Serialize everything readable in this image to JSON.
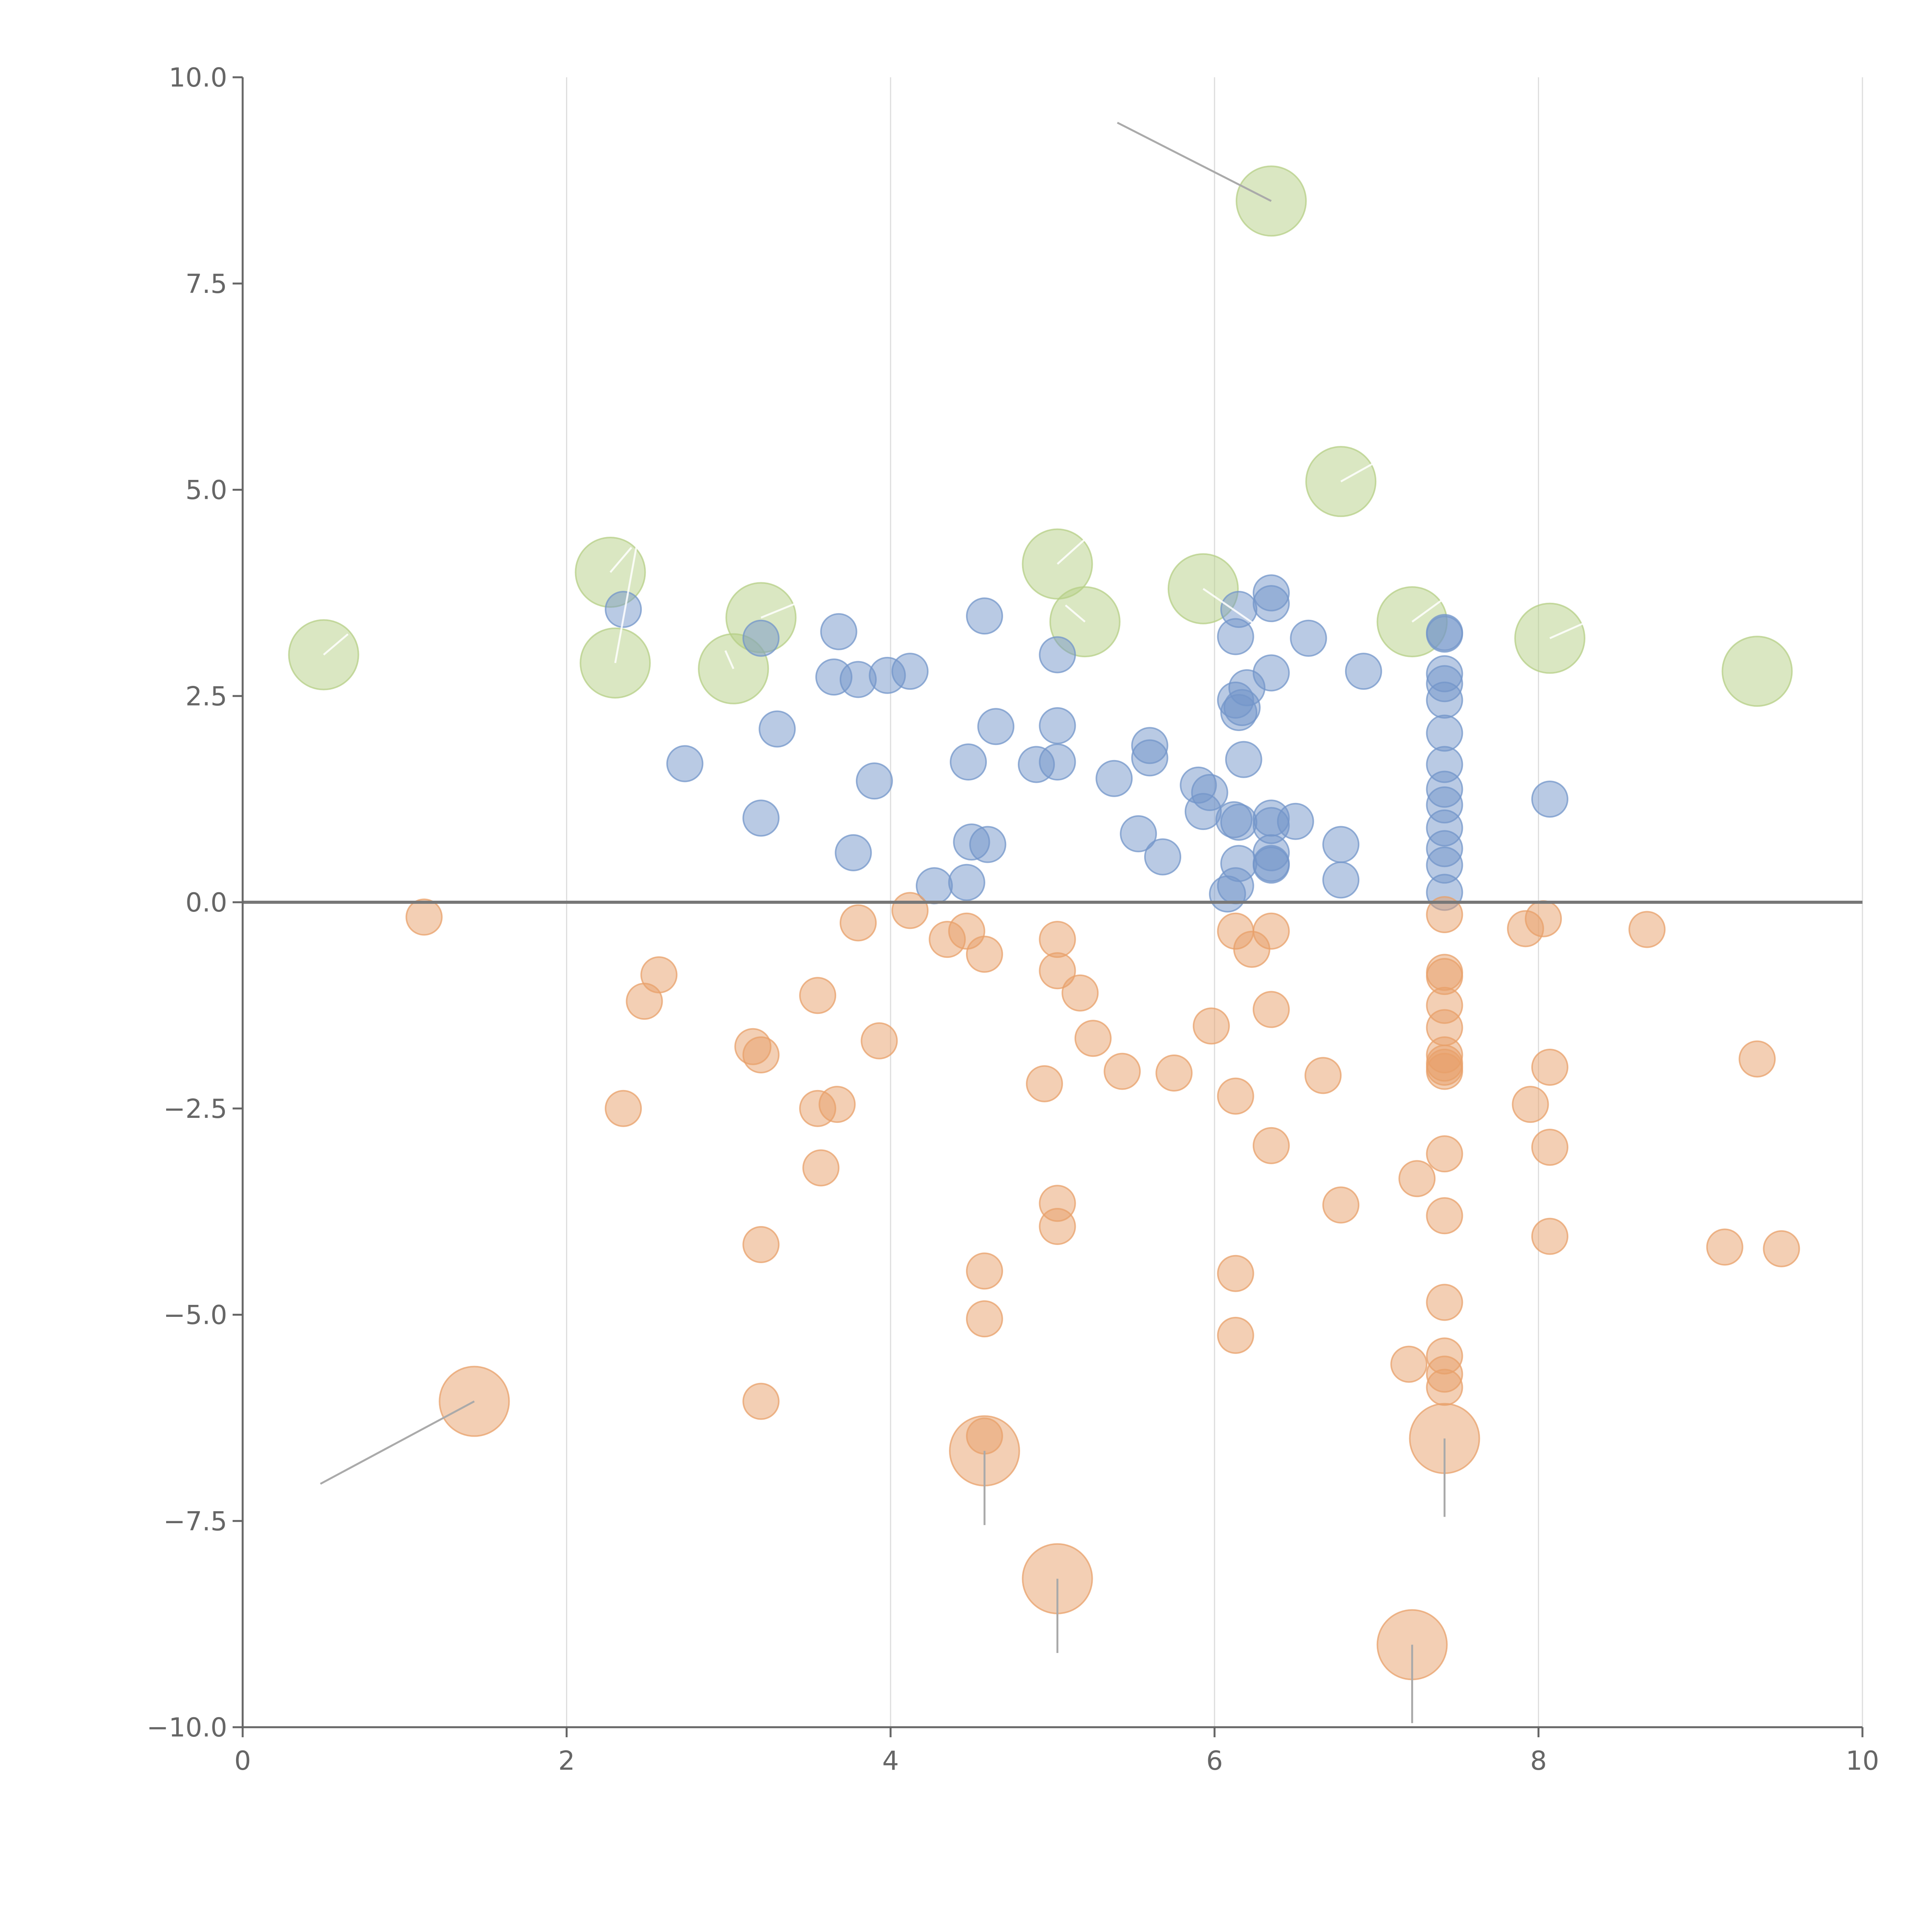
{
  "chart_data": {
    "type": "scatter",
    "title": "",
    "xlabel": "",
    "ylabel": "",
    "xlim": [
      0,
      10
    ],
    "ylim": [
      -10,
      10
    ],
    "x_ticks": [
      0,
      2,
      4,
      6,
      8,
      10
    ],
    "x_tick_labels": [
      "0",
      "2",
      "4",
      "6",
      "8",
      "10"
    ],
    "y_ticks": [
      10,
      7.5,
      5,
      2.5,
      0,
      -2.5,
      -5,
      -7.5,
      -10
    ],
    "y_tick_labels": [
      "10.0",
      "7.5",
      "5.0",
      "2.5",
      "0.0",
      "−2.5",
      "−5.0",
      "−7.5",
      "−10.0"
    ],
    "grid": "vertical",
    "zero_line": true,
    "colors": {
      "blue": "#7396c9",
      "orange": "#e8a06a",
      "green": "#b5cf86"
    },
    "series": [
      {
        "name": "green",
        "color": "#b5cf86",
        "size": "large",
        "points": [
          [
            0.5,
            3.0
          ],
          [
            2.27,
            4.0
          ],
          [
            2.3,
            2.9
          ],
          [
            3.2,
            3.45
          ],
          [
            3.03,
            2.83
          ],
          [
            5.03,
            4.1
          ],
          [
            5.2,
            3.4
          ],
          [
            5.93,
            3.8
          ],
          [
            6.35,
            8.5
          ],
          [
            6.78,
            5.1
          ],
          [
            7.22,
            3.4
          ],
          [
            8.07,
            3.2
          ],
          [
            9.35,
            2.8
          ]
        ],
        "leaders": [
          [
            6.35,
            8.5,
            5.4,
            9.45,
            "gray"
          ],
          [
            0.5,
            3.0,
            0.65,
            3.25,
            "white"
          ],
          [
            2.27,
            4.0,
            2.4,
            4.3,
            "white"
          ],
          [
            2.3,
            2.9,
            2.43,
            4.3,
            "white"
          ],
          [
            3.2,
            3.45,
            3.45,
            3.65,
            "white"
          ],
          [
            3.03,
            2.83,
            2.98,
            3.05,
            "white"
          ],
          [
            5.03,
            4.1,
            5.2,
            4.4,
            "white"
          ],
          [
            5.2,
            3.4,
            5.08,
            3.6,
            "white"
          ],
          [
            5.93,
            3.8,
            6.3,
            3.3,
            "white"
          ],
          [
            6.78,
            5.1,
            7.1,
            5.45,
            "white"
          ],
          [
            7.22,
            3.4,
            7.5,
            3.8,
            "white"
          ],
          [
            8.07,
            3.2,
            8.3,
            3.4,
            "white"
          ]
        ]
      },
      {
        "name": "blue",
        "color": "#7396c9",
        "size": "medium",
        "points": [
          [
            2.35,
            3.55
          ],
          [
            2.73,
            1.68
          ],
          [
            3.2,
            3.2
          ],
          [
            3.2,
            1.02
          ],
          [
            3.3,
            2.1
          ],
          [
            3.68,
            3.28
          ],
          [
            3.65,
            2.73
          ],
          [
            3.8,
            2.7
          ],
          [
            3.77,
            0.6
          ],
          [
            3.9,
            1.47
          ],
          [
            3.98,
            2.75
          ],
          [
            4.12,
            2.8
          ],
          [
            4.27,
            0.2
          ],
          [
            4.47,
            0.24
          ],
          [
            4.48,
            1.7
          ],
          [
            4.5,
            0.73
          ],
          [
            4.58,
            3.47
          ],
          [
            4.6,
            0.7
          ],
          [
            4.65,
            2.13
          ],
          [
            4.9,
            1.67
          ],
          [
            5.03,
            3.0
          ],
          [
            5.03,
            2.14
          ],
          [
            5.03,
            1.7
          ],
          [
            5.38,
            1.5
          ],
          [
            5.53,
            0.83
          ],
          [
            5.6,
            1.9
          ],
          [
            5.6,
            1.75
          ],
          [
            5.68,
            0.55
          ],
          [
            5.9,
            1.42
          ],
          [
            5.93,
            1.1
          ],
          [
            5.97,
            1.33
          ],
          [
            6.08,
            0.1
          ],
          [
            6.12,
            1.0
          ],
          [
            6.15,
            0.97
          ],
          [
            6.13,
            0.2
          ],
          [
            6.15,
            0.47
          ],
          [
            6.13,
            2.45
          ],
          [
            6.15,
            2.3
          ],
          [
            6.17,
            2.36
          ],
          [
            6.2,
            2.6
          ],
          [
            6.18,
            1.73
          ],
          [
            6.13,
            3.22
          ],
          [
            6.15,
            3.55
          ],
          [
            6.35,
            3.75
          ],
          [
            6.35,
            3.62
          ],
          [
            6.35,
            2.78
          ],
          [
            6.35,
            1.02
          ],
          [
            6.35,
            0.93
          ],
          [
            6.35,
            0.6
          ],
          [
            6.35,
            0.47
          ],
          [
            6.35,
            0.45
          ],
          [
            6.5,
            0.98
          ],
          [
            6.58,
            3.2
          ],
          [
            6.78,
            0.7
          ],
          [
            6.78,
            0.27
          ],
          [
            6.92,
            2.8
          ],
          [
            7.42,
            3.27
          ],
          [
            7.42,
            3.25
          ],
          [
            7.42,
            2.77
          ],
          [
            7.42,
            2.65
          ],
          [
            7.42,
            2.45
          ],
          [
            7.42,
            2.05
          ],
          [
            7.42,
            1.67
          ],
          [
            7.42,
            1.37
          ],
          [
            7.42,
            1.18
          ],
          [
            7.42,
            0.9
          ],
          [
            7.42,
            0.65
          ],
          [
            7.42,
            0.45
          ],
          [
            7.42,
            0.12
          ],
          [
            8.07,
            1.25
          ]
        ]
      },
      {
        "name": "orange",
        "color": "#e8a06a",
        "size": "medium",
        "points": [
          [
            1.12,
            -0.18
          ],
          [
            2.35,
            -2.5
          ],
          [
            2.48,
            -1.2
          ],
          [
            2.57,
            -0.88
          ],
          [
            3.15,
            -1.75
          ],
          [
            3.2,
            -1.85
          ],
          [
            3.2,
            -4.15
          ],
          [
            3.2,
            -6.05
          ],
          [
            3.55,
            -1.13
          ],
          [
            3.55,
            -2.5
          ],
          [
            3.57,
            -3.22
          ],
          [
            3.67,
            -2.45
          ],
          [
            3.8,
            -0.25
          ],
          [
            3.93,
            -1.68
          ],
          [
            4.12,
            -0.1
          ],
          [
            4.35,
            -0.45
          ],
          [
            4.47,
            -0.35
          ],
          [
            4.58,
            -0.63
          ],
          [
            4.58,
            -4.47
          ],
          [
            4.58,
            -5.05
          ],
          [
            4.58,
            -6.47
          ],
          [
            4.95,
            -2.2
          ],
          [
            5.03,
            -0.45
          ],
          [
            5.03,
            -0.83
          ],
          [
            5.03,
            -3.65
          ],
          [
            5.03,
            -3.93
          ],
          [
            5.17,
            -1.1
          ],
          [
            5.25,
            -1.65
          ],
          [
            5.43,
            -2.05
          ],
          [
            5.75,
            -2.07
          ],
          [
            5.98,
            -1.5
          ],
          [
            6.13,
            -0.35
          ],
          [
            6.13,
            -2.35
          ],
          [
            6.13,
            -4.5
          ],
          [
            6.13,
            -5.25
          ],
          [
            6.23,
            -0.57
          ],
          [
            6.35,
            -0.35
          ],
          [
            6.35,
            -1.3
          ],
          [
            6.35,
            -2.95
          ],
          [
            6.67,
            -2.1
          ],
          [
            6.78,
            -3.67
          ],
          [
            7.2,
            -5.6
          ],
          [
            7.25,
            -3.35
          ],
          [
            7.42,
            -0.15
          ],
          [
            7.42,
            -0.85
          ],
          [
            7.42,
            -0.9
          ],
          [
            7.42,
            -1.25
          ],
          [
            7.42,
            -1.52
          ],
          [
            7.42,
            -1.85
          ],
          [
            7.42,
            -1.95
          ],
          [
            7.42,
            -2.0
          ],
          [
            7.42,
            -2.05
          ],
          [
            7.42,
            -3.05
          ],
          [
            7.42,
            -3.8
          ],
          [
            7.42,
            -4.85
          ],
          [
            7.42,
            -5.5
          ],
          [
            7.42,
            -5.72
          ],
          [
            7.42,
            -5.88
          ],
          [
            7.92,
            -0.32
          ],
          [
            7.95,
            -2.45
          ],
          [
            8.03,
            -0.2
          ],
          [
            8.07,
            -2.0
          ],
          [
            8.07,
            -2.97
          ],
          [
            8.07,
            -4.05
          ],
          [
            8.67,
            -0.33
          ],
          [
            9.15,
            -4.18
          ],
          [
            9.35,
            -1.9
          ],
          [
            9.5,
            -4.2
          ]
        ]
      },
      {
        "name": "orange-large",
        "color": "#e8a06a",
        "size": "large",
        "points": [
          [
            1.43,
            -6.05
          ],
          [
            4.58,
            -6.65
          ],
          [
            5.03,
            -8.2
          ],
          [
            7.22,
            -9.0
          ],
          [
            7.42,
            -6.5
          ]
        ],
        "leaders": [
          [
            1.43,
            -6.05,
            0.48,
            -7.05,
            "gray"
          ],
          [
            4.58,
            -6.65,
            4.58,
            -7.55,
            "gray"
          ],
          [
            5.03,
            -8.2,
            5.03,
            -9.1,
            "gray"
          ],
          [
            7.22,
            -9.0,
            7.22,
            -9.95,
            "gray"
          ],
          [
            7.42,
            -6.5,
            7.42,
            -7.45,
            "gray"
          ]
        ]
      }
    ]
  }
}
